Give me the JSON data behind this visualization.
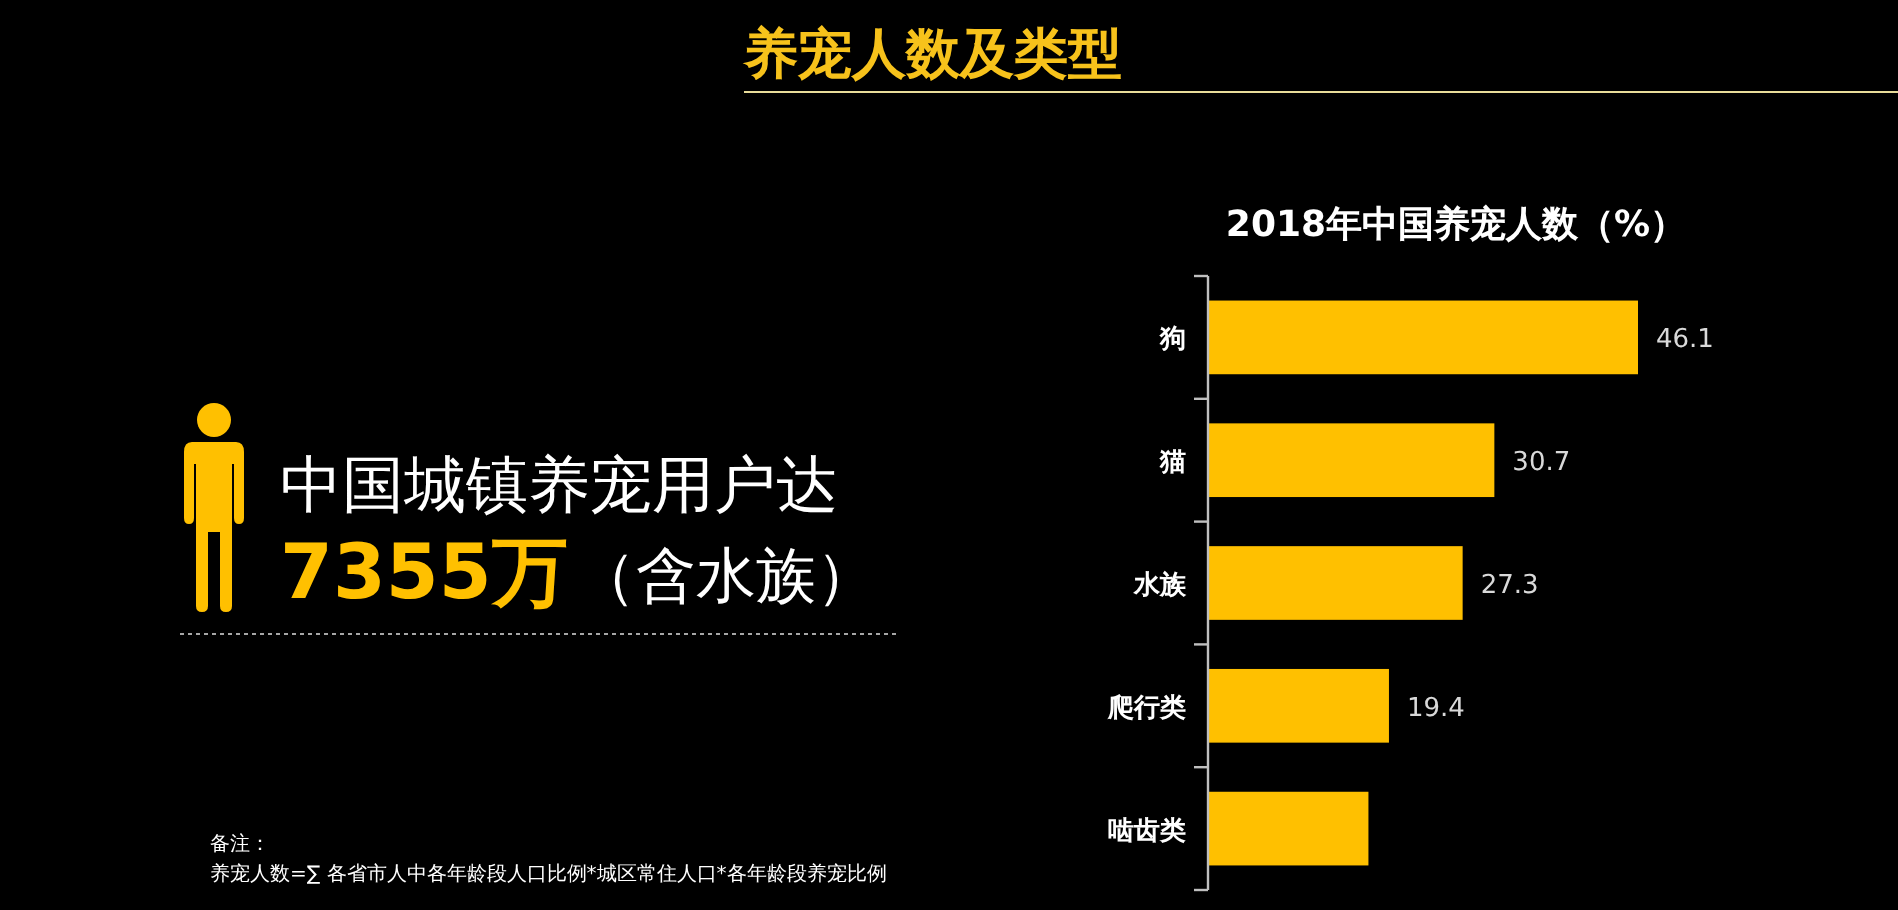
{
  "chart_data": {
    "type": "bar",
    "orientation": "horizontal",
    "title": "养宠人数及类型",
    "subtitle": "2018年中国养宠人数（%）",
    "categories": [
      "狗",
      "猫",
      "水族",
      "爬行类",
      "啮齿类"
    ],
    "values": [
      46.1,
      30.7,
      27.3,
      19.4,
      17.2
    ],
    "value_labels": [
      "46.1",
      "30.7",
      "27.3",
      "19.4",
      null
    ],
    "color": "#ffc000",
    "annotations": [
      "中国城镇养宠用户达",
      "7355万",
      "（含水族）",
      "备注：",
      "养宠人数=∑ 各省市人中各年龄段人口比例*城区常住人口*各年龄段养宠比例"
    ]
  }
}
